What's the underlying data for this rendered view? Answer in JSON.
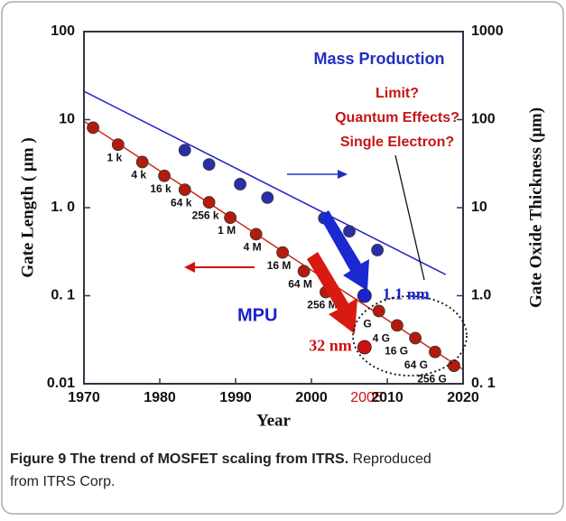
{
  "chart_data": {
    "type": "scatter",
    "xlabel": "Year",
    "ylabel": "Gate Length ( μm )",
    "y2label": "Gate Oxide Thickness (μm)",
    "xlim": [
      1970,
      2020
    ],
    "xticks": [
      1970,
      1980,
      1990,
      2000,
      2010,
      2020
    ],
    "ylim": [
      0.01,
      100
    ],
    "yticks": [
      {
        "value": 100,
        "label": "100"
      },
      {
        "value": 10,
        "label": "10"
      },
      {
        "value": 1,
        "label": "1. 0"
      },
      {
        "value": 0.1,
        "label": "0. 1"
      },
      {
        "value": 0.01,
        "label": "0.01"
      }
    ],
    "y2lim": [
      0.1,
      1000
    ],
    "y2ticks": [
      {
        "value": 1000,
        "label": "1000"
      },
      {
        "value": 100,
        "label": "100"
      },
      {
        "value": 10,
        "label": "10"
      },
      {
        "value": 1,
        "label": "1.0"
      },
      {
        "value": 0.1,
        "label": "0. 1"
      }
    ],
    "log_scale": true,
    "series": [
      {
        "color": "#b31b0e",
        "x": [
          1971.2,
          1974.5,
          1977.7,
          1980.6,
          1983.3,
          1986.5,
          1989.3,
          1992.7,
          1996.2,
          1999.0,
          2001.9,
          2008.9,
          2011.3,
          2013.7,
          2016.3,
          2018.8
        ],
        "values": [
          8.1,
          5.2,
          3.3,
          2.3,
          1.6,
          1.15,
          0.77,
          0.5,
          0.31,
          0.19,
          0.11,
          0.067,
          0.046,
          0.033,
          0.023,
          0.016
        ],
        "labels": [
          null,
          "1 k",
          "4 k",
          "16 k",
          "64 k",
          "256 k",
          "1 M",
          "4 M",
          "16 M",
          "64 M",
          "256 M",
          "G",
          "4 G",
          "16 G",
          "64 G",
          "256 G"
        ]
      },
      {
        "color": "#2a2fa8",
        "axis": "y2",
        "x": [
          1983.3,
          1986.5,
          1990.6,
          1994.2,
          2001.7,
          2005.0,
          2008.7
        ],
        "values": [
          45,
          31,
          18.5,
          13,
          7.6,
          5.4,
          3.3
        ]
      }
    ],
    "trend_lines": [
      {
        "color": "#cc2a1a",
        "x": [
          1970,
          2020
        ],
        "values": [
          9.6,
          0.0145
        ]
      },
      {
        "color": "#2323c8",
        "axis": "y2",
        "x": [
          1970,
          2017.7
        ],
        "values": [
          210,
          1.74
        ]
      }
    ],
    "highlights": [
      {
        "color": "#1a22cc",
        "axis": "y2",
        "x": 2007,
        "value": 1.0,
        "label": "1.1 nm"
      },
      {
        "color": "#d01010",
        "x": 2007,
        "value": 0.026,
        "label": "32 nm"
      }
    ],
    "annotations": {
      "mass_production": "Mass Production",
      "limit": [
        "Limit?",
        "Quantum Effects?",
        "Single Electron?"
      ],
      "mpu": "MPU",
      "year_mark": "2005"
    },
    "caption": {
      "bold": "Figure 9 The trend of MOSFET scaling from ITRS.",
      "rest": "Reproduced",
      "line2": "from ITRS Corp."
    }
  }
}
